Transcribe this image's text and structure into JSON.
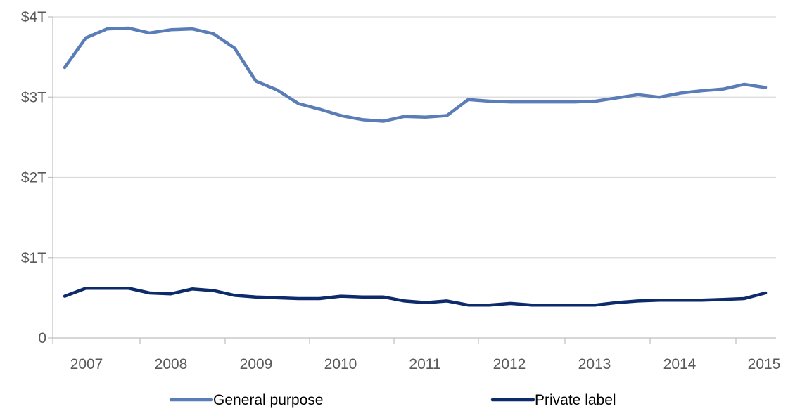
{
  "chart_data": {
    "type": "line",
    "title": "",
    "xlabel": "",
    "ylabel": "",
    "ylim": [
      0,
      4
    ],
    "y_ticks": [
      {
        "value": 0,
        "label": "0"
      },
      {
        "value": 1,
        "label": "$1T"
      },
      {
        "value": 2,
        "label": "$2T"
      },
      {
        "value": 3,
        "label": "$3T"
      },
      {
        "value": 4,
        "label": "$4T"
      }
    ],
    "x_tick_labels": [
      "2007",
      "2008",
      "2009",
      "2010",
      "2011",
      "2012",
      "2013",
      "2014",
      "2015"
    ],
    "x_start_year": 2007,
    "points_per_year": 4,
    "grid": "horizontal",
    "legend_position": "bottom",
    "series": [
      {
        "name": "General purpose",
        "color": "#5b7db7",
        "values": [
          3.37,
          3.74,
          3.85,
          3.86,
          3.8,
          3.84,
          3.85,
          3.79,
          3.61,
          3.2,
          3.09,
          2.92,
          2.85,
          2.77,
          2.72,
          2.7,
          2.76,
          2.75,
          2.77,
          2.97,
          2.95,
          2.94,
          2.94,
          2.94,
          2.94,
          2.95,
          2.99,
          3.03,
          3.0,
          3.05,
          3.08,
          3.1,
          3.16,
          3.12
        ]
      },
      {
        "name": "Private label",
        "color": "#0d2a6b",
        "values": [
          0.52,
          0.62,
          0.62,
          0.62,
          0.56,
          0.55,
          0.61,
          0.59,
          0.53,
          0.51,
          0.5,
          0.49,
          0.49,
          0.52,
          0.51,
          0.51,
          0.46,
          0.44,
          0.46,
          0.41,
          0.41,
          0.43,
          0.41,
          0.41,
          0.41,
          0.41,
          0.44,
          0.46,
          0.47,
          0.47,
          0.47,
          0.48,
          0.49,
          0.56
        ]
      }
    ]
  }
}
